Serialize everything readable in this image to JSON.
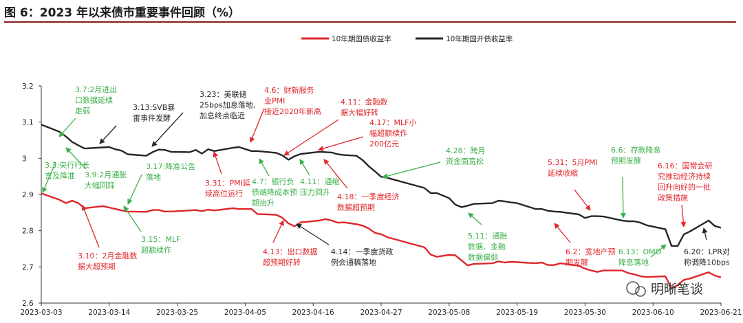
{
  "figure_title": "图 6：2023 年以来债市重要事件回顾（%）",
  "watermark": "明晰笔谈",
  "colors": {
    "red": "#e0262b",
    "black": "#262626",
    "green": "#3cb04b",
    "ann_red": "#e0262b",
    "ann_black": "#262626"
  },
  "chart_data": {
    "type": "line",
    "xlim": [
      "2023-03-03",
      "2023-06-21"
    ],
    "ylim": [
      2.6,
      3.2
    ],
    "yticks": [
      "2.6",
      "2.7",
      "2.8",
      "2.9",
      "3",
      "3.1",
      "3.2"
    ],
    "xticks": [
      "2023-03-03",
      "2023-03-14",
      "2023-03-25",
      "2023-04-05",
      "2023-04-16",
      "2023-04-27",
      "2023-05-08",
      "2023-05-19",
      "2023-05-30",
      "2023-06-10",
      "2023-06-21"
    ],
    "legend": [
      "10年期国债收益率",
      "10年期国开债收益率"
    ],
    "series": [
      {
        "name": "10年期国债收益率",
        "color": "#e0262b",
        "points": [
          [
            "2023-03-03",
            2.903
          ],
          [
            "2023-03-06",
            2.885
          ],
          [
            "2023-03-07",
            2.876
          ],
          [
            "2023-03-08",
            2.883
          ],
          [
            "2023-03-09",
            2.876
          ],
          [
            "2023-03-10",
            2.862
          ],
          [
            "2023-03-13",
            2.868
          ],
          [
            "2023-03-14",
            2.864
          ],
          [
            "2023-03-15",
            2.86
          ],
          [
            "2023-03-16",
            2.856
          ],
          [
            "2023-03-17",
            2.853
          ],
          [
            "2023-03-20",
            2.852
          ],
          [
            "2023-03-21",
            2.857
          ],
          [
            "2023-03-22",
            2.857
          ],
          [
            "2023-03-23",
            2.853
          ],
          [
            "2023-03-24",
            2.853
          ],
          [
            "2023-03-27",
            2.856
          ],
          [
            "2023-03-28",
            2.857
          ],
          [
            "2023-03-29",
            2.854
          ],
          [
            "2023-03-30",
            2.858
          ],
          [
            "2023-03-31",
            2.856
          ],
          [
            "2023-04-03",
            2.862
          ],
          [
            "2023-04-04",
            2.86
          ],
          [
            "2023-04-06",
            2.86
          ],
          [
            "2023-04-07",
            2.846
          ],
          [
            "2023-04-10",
            2.844
          ],
          [
            "2023-04-11",
            2.836
          ],
          [
            "2023-04-12",
            2.82
          ],
          [
            "2023-04-13",
            2.812
          ],
          [
            "2023-04-14",
            2.823
          ],
          [
            "2023-04-17",
            2.828
          ],
          [
            "2023-04-18",
            2.832
          ],
          [
            "2023-04-19",
            2.828
          ],
          [
            "2023-04-20",
            2.822
          ],
          [
            "2023-04-21",
            2.823
          ],
          [
            "2023-04-23",
            2.818
          ],
          [
            "2023-04-24",
            2.814
          ],
          [
            "2023-04-25",
            2.806
          ],
          [
            "2023-04-26",
            2.794
          ],
          [
            "2023-04-27",
            2.79
          ],
          [
            "2023-04-28",
            2.782
          ],
          [
            "2023-05-04",
            2.754
          ],
          [
            "2023-05-05",
            2.734
          ],
          [
            "2023-05-06",
            2.728
          ],
          [
            "2023-05-08",
            2.733
          ],
          [
            "2023-05-09",
            2.732
          ],
          [
            "2023-05-10",
            2.718
          ],
          [
            "2023-05-11",
            2.704
          ],
          [
            "2023-05-12",
            2.708
          ],
          [
            "2023-05-15",
            2.71
          ],
          [
            "2023-05-16",
            2.715
          ],
          [
            "2023-05-17",
            2.712
          ],
          [
            "2023-05-18",
            2.714
          ],
          [
            "2023-05-19",
            2.713
          ],
          [
            "2023-05-22",
            2.71
          ],
          [
            "2023-05-23",
            2.712
          ],
          [
            "2023-05-24",
            2.705
          ],
          [
            "2023-05-25",
            2.705
          ],
          [
            "2023-05-26",
            2.71
          ],
          [
            "2023-05-29",
            2.703
          ],
          [
            "2023-05-30",
            2.695
          ],
          [
            "2023-05-31",
            2.69
          ],
          [
            "2023-06-01",
            2.686
          ],
          [
            "2023-06-02",
            2.69
          ],
          [
            "2023-06-05",
            2.69
          ],
          [
            "2023-06-06",
            2.683
          ],
          [
            "2023-06-07",
            2.679
          ],
          [
            "2023-06-08",
            2.674
          ],
          [
            "2023-06-09",
            2.672
          ],
          [
            "2023-06-12",
            2.674
          ],
          [
            "2023-06-13",
            2.64
          ],
          [
            "2023-06-14",
            2.65
          ],
          [
            "2023-06-15",
            2.664
          ],
          [
            "2023-06-16",
            2.668
          ],
          [
            "2023-06-19",
            2.685
          ],
          [
            "2023-06-20",
            2.676
          ],
          [
            "2023-06-21",
            2.671
          ]
        ]
      },
      {
        "name": "10年期国开债收益率",
        "color": "#262626",
        "points": [
          [
            "2023-03-03",
            3.093
          ],
          [
            "2023-03-06",
            3.073
          ],
          [
            "2023-03-07",
            3.06
          ],
          [
            "2023-03-08",
            3.045
          ],
          [
            "2023-03-09",
            3.036
          ],
          [
            "2023-03-10",
            3.027
          ],
          [
            "2023-03-13",
            3.03
          ],
          [
            "2023-03-14",
            3.031
          ],
          [
            "2023-03-15",
            3.025
          ],
          [
            "2023-03-16",
            3.021
          ],
          [
            "2023-03-17",
            3.011
          ],
          [
            "2023-03-20",
            3.007
          ],
          [
            "2023-03-21",
            3.017
          ],
          [
            "2023-03-22",
            3.024
          ],
          [
            "2023-03-23",
            3.023
          ],
          [
            "2023-03-24",
            3.018
          ],
          [
            "2023-03-27",
            3.017
          ],
          [
            "2023-03-28",
            3.023
          ],
          [
            "2023-03-29",
            3.013
          ],
          [
            "2023-03-30",
            3.025
          ],
          [
            "2023-03-31",
            3.02
          ],
          [
            "2023-04-03",
            3.029
          ],
          [
            "2023-04-04",
            3.031
          ],
          [
            "2023-04-06",
            3.02
          ],
          [
            "2023-04-07",
            3.02
          ],
          [
            "2023-04-10",
            3.015
          ],
          [
            "2023-04-11",
            3.008
          ],
          [
            "2023-04-12",
            2.996
          ],
          [
            "2023-04-13",
            3.006
          ],
          [
            "2023-04-14",
            3.012
          ],
          [
            "2023-04-17",
            3.018
          ],
          [
            "2023-04-18",
            3.017
          ],
          [
            "2023-04-19",
            3.016
          ],
          [
            "2023-04-20",
            3.011
          ],
          [
            "2023-04-21",
            3.009
          ],
          [
            "2023-04-23",
            3.007
          ],
          [
            "2023-04-24",
            2.995
          ],
          [
            "2023-04-25",
            2.978
          ],
          [
            "2023-04-26",
            2.964
          ],
          [
            "2023-04-27",
            2.949
          ],
          [
            "2023-04-28",
            2.946
          ],
          [
            "2023-05-04",
            2.918
          ],
          [
            "2023-05-05",
            2.904
          ],
          [
            "2023-05-06",
            2.904
          ],
          [
            "2023-05-08",
            2.89
          ],
          [
            "2023-05-09",
            2.872
          ],
          [
            "2023-05-10",
            2.865
          ],
          [
            "2023-05-11",
            2.869
          ],
          [
            "2023-05-12",
            2.874
          ],
          [
            "2023-05-15",
            2.876
          ],
          [
            "2023-05-16",
            2.883
          ],
          [
            "2023-05-17",
            2.881
          ],
          [
            "2023-05-18",
            2.878
          ],
          [
            "2023-05-19",
            2.876
          ],
          [
            "2023-05-22",
            2.86
          ],
          [
            "2023-05-23",
            2.86
          ],
          [
            "2023-05-24",
            2.855
          ],
          [
            "2023-05-25",
            2.853
          ],
          [
            "2023-05-26",
            2.852
          ],
          [
            "2023-05-29",
            2.845
          ],
          [
            "2023-05-30",
            2.835
          ],
          [
            "2023-05-31",
            2.84
          ],
          [
            "2023-06-01",
            2.84
          ],
          [
            "2023-06-02",
            2.839
          ],
          [
            "2023-06-05",
            2.828
          ],
          [
            "2023-06-06",
            2.826
          ],
          [
            "2023-06-07",
            2.826
          ],
          [
            "2023-06-08",
            2.822
          ],
          [
            "2023-06-09",
            2.815
          ],
          [
            "2023-06-12",
            2.804
          ],
          [
            "2023-06-13",
            2.758
          ],
          [
            "2023-06-14",
            2.758
          ],
          [
            "2023-06-15",
            2.79
          ],
          [
            "2023-06-16",
            2.798
          ],
          [
            "2023-06-19",
            2.828
          ],
          [
            "2023-06-20",
            2.813
          ],
          [
            "2023-06-21",
            2.808
          ]
        ]
      }
    ],
    "annotations": [
      {
        "lines": [
          "3.7:2月进出",
          "口数据延续",
          "走弱"
        ],
        "color": "green"
      },
      {
        "lines": [
          "3.3:央行行长",
          "言及降准"
        ],
        "color": "green"
      },
      {
        "lines": [
          "3.9:2月通胀",
          "大幅回踩"
        ],
        "color": "green"
      },
      {
        "lines": [
          "3.13:SVB暴",
          "雷事件发酵"
        ],
        "color": "black"
      },
      {
        "lines": [
          "3.10：2月金融数",
          "据大超预期"
        ],
        "color": "red"
      },
      {
        "lines": [
          "3.15：MLF",
          "超额续作"
        ],
        "color": "green"
      },
      {
        "lines": [
          "3.17:降准公告",
          "落地"
        ],
        "color": "green"
      },
      {
        "lines": [
          "3.23：美联储",
          "25bps加息落地,",
          "加息终点临近"
        ],
        "color": "black"
      },
      {
        "lines": [
          "3.31：PMI延",
          "续高位运行"
        ],
        "color": "red"
      },
      {
        "lines": [
          "4.6：财新服务",
          "业PMI",
          "接近2020年新高"
        ],
        "color": "red"
      },
      {
        "lines": [
          "4.7：银行负",
          "债端降成本预",
          "期抬升"
        ],
        "color": "green"
      },
      {
        "lines": [
          "4.11：通缩",
          "压力回升"
        ],
        "color": "green"
      },
      {
        "lines": [
          "4.11：金融数",
          "据大幅好转"
        ],
        "color": "red"
      },
      {
        "lines": [
          "4.13：出口数据",
          "超预期好转"
        ],
        "color": "red"
      },
      {
        "lines": [
          "4.14：一季度货政",
          "例会通稿落地"
        ],
        "color": "black"
      },
      {
        "lines": [
          "4.17：MLF小",
          "幅超额续作",
          "200亿元"
        ],
        "color": "red"
      },
      {
        "lines": [
          "4.18：一季度经济",
          "数据超预期"
        ],
        "color": "red"
      },
      {
        "lines": [
          "4.28：跨月",
          "资金面宽松"
        ],
        "color": "green"
      },
      {
        "lines": [
          "5.11：通胀",
          "数据、金融",
          "数据偏弱"
        ],
        "color": "green"
      },
      {
        "lines": [
          "5.31：5月PMI",
          "延续收缩"
        ],
        "color": "red"
      },
      {
        "lines": [
          "6.2：宽地产预",
          "期发酵"
        ],
        "color": "red"
      },
      {
        "lines": [
          "6.6：存款降息",
          "预期发酵"
        ],
        "color": "green"
      },
      {
        "lines": [
          "6.13：OMO",
          "降息落地"
        ],
        "color": "green"
      },
      {
        "lines": [
          "6.16：国常会研",
          "究推动经济持续",
          "回升向好的一批",
          "政策措施"
        ],
        "color": "red"
      },
      {
        "lines": [
          "6.20：LPR对",
          "称调降10bps"
        ],
        "color": "black"
      }
    ]
  }
}
